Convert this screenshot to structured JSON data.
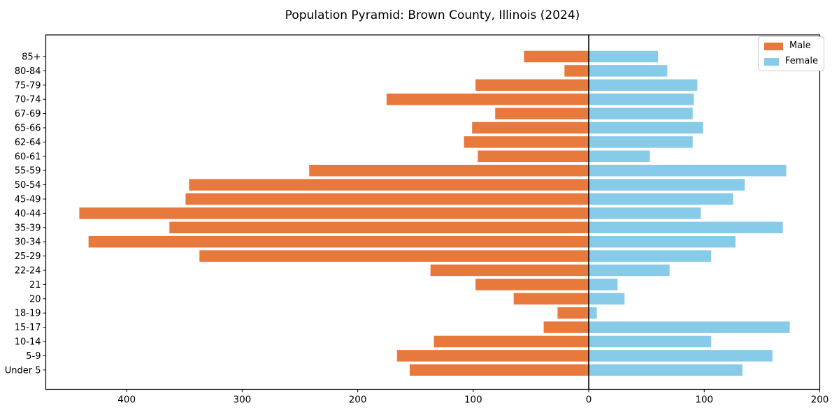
{
  "chart_data": {
    "type": "bar",
    "variant": "population-pyramid",
    "title": "Population Pyramid: Brown County, Illinois (2024)",
    "categories": [
      "85+",
      "80-84",
      "75-79",
      "70-74",
      "67-69",
      "65-66",
      "62-64",
      "60-61",
      "55-59",
      "50-54",
      "45-49",
      "40-44",
      "35-39",
      "30-34",
      "25-29",
      "22-24",
      "21",
      "20",
      "18-19",
      "15-17",
      "10-14",
      "5-9",
      "Under 5"
    ],
    "series": [
      {
        "name": "Male",
        "direction": "left",
        "color": "#e8793d",
        "values": [
          56,
          21,
          98,
          175,
          81,
          101,
          108,
          96,
          242,
          346,
          349,
          441,
          363,
          433,
          337,
          137,
          98,
          65,
          27,
          39,
          134,
          166,
          155
        ]
      },
      {
        "name": "Female",
        "direction": "right",
        "color": "#87cbe8",
        "values": [
          60,
          68,
          94,
          91,
          90,
          99,
          90,
          53,
          171,
          135,
          125,
          97,
          168,
          127,
          106,
          70,
          25,
          31,
          7,
          174,
          106,
          159,
          133
        ]
      }
    ],
    "x_axis": {
      "range": [
        -470,
        200
      ],
      "ticks": [
        -400,
        -300,
        -200,
        -100,
        0,
        100,
        200
      ],
      "tick_labels": [
        "400",
        "300",
        "200",
        "100",
        "0",
        "100",
        "200"
      ]
    },
    "legend": {
      "position": "upper-right",
      "entries": [
        "Male",
        "Female"
      ]
    },
    "colors": {
      "spine": "#000000",
      "zero_line": "#000000",
      "background": "#ffffff",
      "legend_border": "#cccccc"
    },
    "grid": false
  }
}
